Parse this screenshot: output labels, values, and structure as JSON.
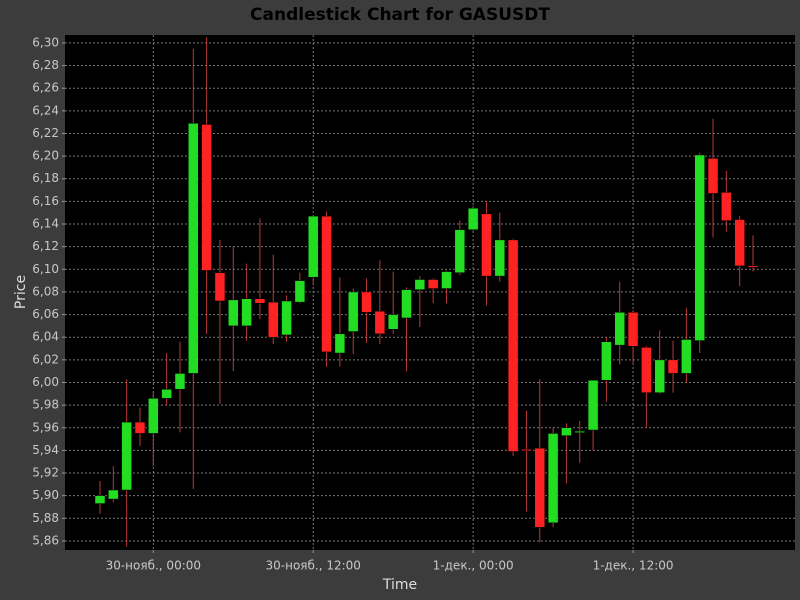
{
  "chart_data": {
    "type": "candlestick",
    "title": "Candlestick Chart for GASUSDT",
    "x_label": "Time",
    "y_label": "Price",
    "x": [
      "29-нояб., 20:00",
      "29-нояб., 21:00",
      "29-нояб., 22:00",
      "29-нояб., 23:00",
      "30-нояб., 00:00",
      "30-нояб., 01:00",
      "30-нояб., 02:00",
      "30-нояб., 03:00",
      "30-нояб., 04:00",
      "30-нояб., 05:00",
      "30-нояб., 06:00",
      "30-нояб., 07:00",
      "30-нояб., 08:00",
      "30-нояб., 09:00",
      "30-нояб., 10:00",
      "30-нояб., 11:00",
      "30-нояб., 12:00",
      "30-нояб., 13:00",
      "30-нояб., 14:00",
      "30-нояб., 15:00",
      "30-нояб., 16:00",
      "30-нояб., 17:00",
      "30-нояб., 18:00",
      "30-нояб., 19:00",
      "30-нояб., 20:00",
      "30-нояб., 21:00",
      "30-нояб., 22:00",
      "30-нояб., 23:00",
      "1-дек., 00:00",
      "1-дек., 01:00",
      "1-дек., 02:00",
      "1-дек., 03:00",
      "1-дек., 04:00",
      "1-дек., 05:00",
      "1-дек., 06:00",
      "1-дек., 07:00",
      "1-дек., 08:00",
      "1-дек., 09:00",
      "1-дек., 10:00",
      "1-дек., 11:00",
      "1-дек., 12:00",
      "1-дек., 13:00",
      "1-дек., 14:00",
      "1-дек., 15:00",
      "1-дек., 16:00",
      "1-дек., 17:00",
      "1-дек., 18:00",
      "1-дек., 19:00",
      "1-дек., 20:00",
      "1-дек., 21:00"
    ],
    "open": [
      5.893,
      5.897,
      5.905,
      5.965,
      5.955,
      5.986,
      5.994,
      6.008,
      6.228,
      6.097,
      6.05,
      6.05,
      6.074,
      6.071,
      6.042,
      6.071,
      6.093,
      6.147,
      6.026,
      6.045,
      6.08,
      6.063,
      6.047,
      6.057,
      6.082,
      6.091,
      6.083,
      6.097,
      6.135,
      6.149,
      6.094,
      6.126,
      5.941,
      5.942,
      5.876,
      5.953,
      5.957,
      5.958,
      6.002,
      6.033,
      6.062,
      6.031,
      5.991,
      6.02,
      6.008,
      6.037,
      6.198,
      6.168,
      6.144,
      6.103
    ],
    "high": [
      5.913,
      5.926,
      6.003,
      5.978,
      5.992,
      6.026,
      6.036,
      6.295,
      6.305,
      6.126,
      6.12,
      6.105,
      6.145,
      6.113,
      6.077,
      6.097,
      6.147,
      6.151,
      6.093,
      6.083,
      6.092,
      6.108,
      6.098,
      6.084,
      6.094,
      6.092,
      6.099,
      6.143,
      6.156,
      6.16,
      6.15,
      6.127,
      5.975,
      6.003,
      5.96,
      5.964,
      5.966,
      6.002,
      6.04,
      6.089,
      6.064,
      6.032,
      6.046,
      6.037,
      6.066,
      6.203,
      6.233,
      6.187,
      6.147,
      6.13
    ],
    "low": [
      5.884,
      5.894,
      5.855,
      5.944,
      5.926,
      5.98,
      5.956,
      5.906,
      6.043,
      5.981,
      6.01,
      6.037,
      6.056,
      6.034,
      6.036,
      6.07,
      6.088,
      6.014,
      6.014,
      6.025,
      6.035,
      6.034,
      6.043,
      6.01,
      6.049,
      6.07,
      6.07,
      6.095,
      6.134,
      6.068,
      6.089,
      5.935,
      5.886,
      5.859,
      5.872,
      5.911,
      5.929,
      5.94,
      5.983,
      6.016,
      6.016,
      5.96,
      5.99,
      5.991,
      6.0,
      6.026,
      6.128,
      6.133,
      6.085,
      6.098
    ],
    "close": [
      5.9,
      5.905,
      5.965,
      5.955,
      5.986,
      5.994,
      6.008,
      6.229,
      6.099,
      6.072,
      6.073,
      6.074,
      6.07,
      6.04,
      6.072,
      6.09,
      6.147,
      6.027,
      6.043,
      6.08,
      6.062,
      6.043,
      6.06,
      6.082,
      6.091,
      6.083,
      6.098,
      6.135,
      6.154,
      6.094,
      6.126,
      5.939,
      5.94,
      5.872,
      5.955,
      5.96,
      5.957,
      6.002,
      6.036,
      6.062,
      6.032,
      5.991,
      6.02,
      6.008,
      6.038,
      6.201,
      6.167,
      6.143,
      6.103,
      6.102
    ],
    "up_color": "#22dd22",
    "down_color": "#ff2222",
    "wick_color": "#b83a3a",
    "xticks": [
      "30-нояб., 00:00",
      "30-нояб., 12:00",
      "1-дек., 00:00",
      "1-дек., 12:00"
    ],
    "ylim": [
      5.852,
      6.307
    ],
    "yticks": [
      {
        "value": 5.86,
        "label": "5,86"
      },
      {
        "value": 5.88,
        "label": "5,88"
      },
      {
        "value": 5.9,
        "label": "5,90"
      },
      {
        "value": 5.92,
        "label": "5,92"
      },
      {
        "value": 5.94,
        "label": "5,94"
      },
      {
        "value": 5.96,
        "label": "5,96"
      },
      {
        "value": 5.98,
        "label": "5,98"
      },
      {
        "value": 6.0,
        "label": "6,00"
      },
      {
        "value": 6.02,
        "label": "6,02"
      },
      {
        "value": 6.04,
        "label": "6,04"
      },
      {
        "value": 6.06,
        "label": "6,06"
      },
      {
        "value": 6.08,
        "label": "6,08"
      },
      {
        "value": 6.1,
        "label": "6,10"
      },
      {
        "value": 6.12,
        "label": "6,12"
      },
      {
        "value": 6.14,
        "label": "6,14"
      },
      {
        "value": 6.16,
        "label": "6,16"
      },
      {
        "value": 6.18,
        "label": "6,18"
      },
      {
        "value": 6.2,
        "label": "6,20"
      },
      {
        "value": 6.22,
        "label": "6,22"
      },
      {
        "value": 6.24,
        "label": "6,24"
      },
      {
        "value": 6.26,
        "label": "6,26"
      },
      {
        "value": 6.28,
        "label": "6,28"
      },
      {
        "value": 6.3,
        "label": "6,30"
      }
    ],
    "grid": true
  }
}
